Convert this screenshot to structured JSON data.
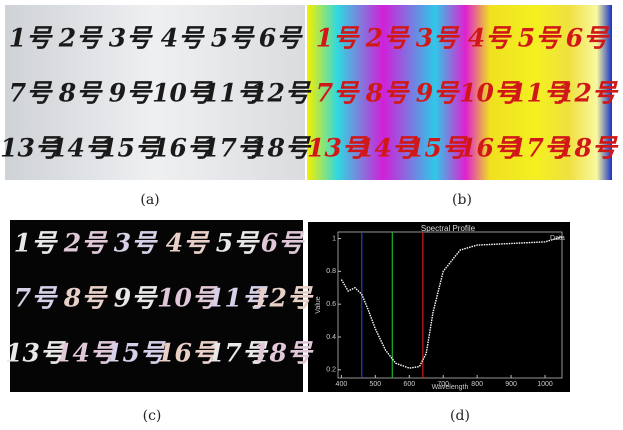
{
  "specimen_labels": [
    "1号",
    "2号",
    "3号",
    "4号",
    "5号",
    "6号",
    "7号",
    "8号",
    "9号",
    "10号",
    "11号",
    "12号",
    "13号",
    "14号",
    "15号",
    "16号",
    "17号",
    "18号"
  ],
  "captions": [
    "(a)",
    "(b)",
    "(c)",
    "(d)"
  ],
  "chart_data": {
    "type": "line",
    "title": "Spectral Profile",
    "x_label": "Wavelength",
    "y_label": "Value",
    "x": [
      400,
      420,
      440,
      460,
      480,
      500,
      530,
      560,
      600,
      630,
      650,
      670,
      700,
      750,
      800,
      900,
      1000,
      1050
    ],
    "series": [
      {
        "name": "Data",
        "color": "#ffffff",
        "values": [
          0.75,
          0.68,
          0.7,
          0.66,
          0.56,
          0.45,
          0.32,
          0.24,
          0.21,
          0.22,
          0.3,
          0.55,
          0.8,
          0.93,
          0.96,
          0.97,
          0.98,
          1.01
        ]
      }
    ],
    "markers": [
      {
        "value": 460,
        "color": "#2a3cd0"
      },
      {
        "value": 550,
        "color": "#20b030"
      },
      {
        "value": 640,
        "color": "#d02020"
      }
    ],
    "xlim": [
      390,
      1050
    ],
    "ylim": [
      0.15,
      1.04
    ],
    "xticks": [
      400,
      500,
      600,
      700,
      800,
      900,
      1000
    ],
    "yticks": [
      0.2,
      0.4,
      0.6,
      0.8,
      1.0
    ]
  }
}
